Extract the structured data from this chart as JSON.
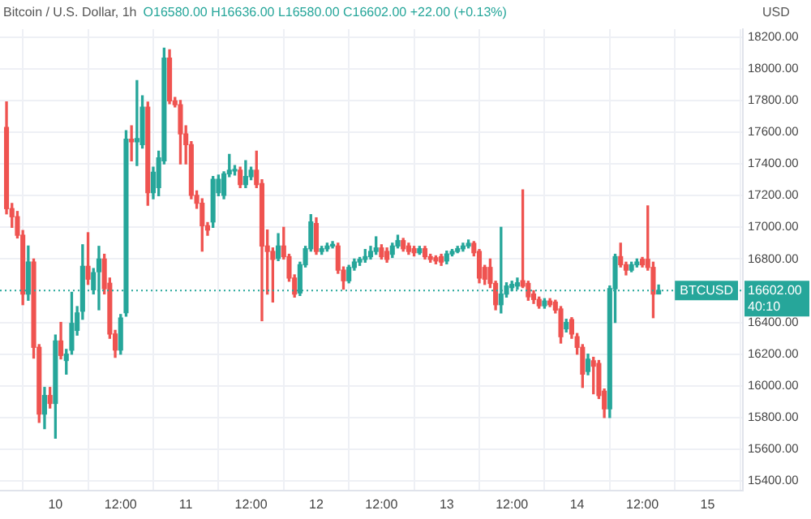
{
  "chart_data": {
    "type": "candlestick",
    "title": "Bitcoin / U.S. Dollar, 1h",
    "subtitle": "O16580.00 H16636.00 L16580.00 C16602.00 +22.00 (+0.13%)",
    "ylabel": "USD",
    "x": [
      "--12-09T15:00",
      "--12-09T16:00",
      "--12-09T17:00",
      "--12-09T18:00",
      "--12-09T19:00",
      "--12-09T20:00",
      "--12-09T21:00",
      "--12-09T22:00",
      "--12-09T23:00",
      "--12-10T00:00",
      "--12-10T01:00",
      "--12-10T02:00",
      "--12-10T03:00",
      "--12-10T04:00",
      "--12-10T05:00",
      "--12-10T06:00",
      "--12-10T07:00",
      "--12-10T08:00",
      "--12-10T09:00",
      "--12-10T10:00",
      "--12-10T11:00",
      "--12-10T12:00",
      "--12-10T13:00",
      "--12-10T14:00",
      "--12-10T15:00",
      "--12-10T16:00",
      "--12-10T17:00",
      "--12-10T18:00",
      "--12-10T19:00",
      "--12-10T20:00",
      "--12-10T21:00",
      "--12-10T22:00",
      "--12-10T23:00",
      "--12-11T00:00",
      "--12-11T01:00",
      "--12-11T02:00",
      "--12-11T03:00",
      "--12-11T04:00",
      "--12-11T05:00",
      "--12-11T06:00",
      "--12-11T07:00",
      "--12-11T08:00",
      "--12-11T09:00",
      "--12-11T10:00",
      "--12-11T11:00",
      "--12-11T12:00",
      "--12-11T13:00",
      "--12-11T14:00",
      "--12-11T15:00",
      "--12-11T16:00",
      "--12-11T17:00",
      "--12-11T18:00",
      "--12-11T19:00",
      "--12-11T20:00",
      "--12-11T21:00",
      "--12-11T22:00",
      "--12-11T23:00",
      "--12-12T00:00",
      "--12-12T01:00",
      "--12-12T02:00",
      "--12-12T03:00",
      "--12-12T04:00",
      "--12-12T05:00",
      "--12-12T06:00",
      "--12-12T07:00",
      "--12-12T08:00",
      "--12-12T09:00",
      "--12-12T10:00",
      "--12-12T11:00",
      "--12-12T12:00",
      "--12-12T13:00",
      "--12-12T14:00",
      "--12-12T15:00",
      "--12-12T16:00",
      "--12-12T17:00",
      "--12-12T18:00",
      "--12-12T19:00",
      "--12-12T20:00",
      "--12-12T21:00",
      "--12-12T22:00",
      "--12-12T23:00",
      "--12-13T00:00",
      "--12-13T01:00",
      "--12-13T02:00",
      "--12-13T03:00",
      "--12-13T04:00",
      "--12-13T05:00",
      "--12-13T06:00",
      "--12-13T07:00",
      "--12-13T08:00",
      "--12-13T09:00",
      "--12-13T10:00",
      "--12-13T11:00",
      "--12-13T12:00",
      "--12-13T13:00",
      "--12-13T14:00",
      "--12-13T15:00",
      "--12-13T16:00",
      "--12-13T17:00",
      "--12-13T18:00",
      "--12-13T19:00",
      "--12-13T20:00",
      "--12-13T21:00",
      "--12-13T22:00",
      "--12-13T23:00",
      "--12-14T00:00",
      "--12-14T01:00",
      "--12-14T02:00",
      "--12-14T03:00",
      "--12-14T04:00",
      "--12-14T05:00",
      "--12-14T06:00",
      "--12-14T07:00",
      "--12-14T08:00",
      "--12-14T09:00",
      "--12-14T10:00",
      "--12-14T11:00",
      "--12-14T12:00",
      "--12-14T13:00",
      "--12-14T14:00",
      "--12-14T15:00"
    ],
    "ohlc": [
      [
        17630,
        17791,
        17085,
        17118
      ],
      [
        17118,
        17150,
        17000,
        17067
      ],
      [
        17067,
        17100,
        16933,
        16950
      ],
      [
        16950,
        16980,
        16512,
        16579
      ],
      [
        16579,
        16882,
        16540,
        16781
      ],
      [
        16781,
        16800,
        16175,
        16243
      ],
      [
        16243,
        16260,
        15770,
        15822
      ],
      [
        15822,
        15990,
        15730,
        15939
      ],
      [
        15939,
        15990,
        15860,
        15889
      ],
      [
        15889,
        16320,
        15670,
        16283
      ],
      [
        16283,
        16400,
        16170,
        16192
      ],
      [
        16160,
        16230,
        16074,
        16200
      ],
      [
        16225,
        16590,
        16200,
        16394
      ],
      [
        16350,
        16500,
        16320,
        16460
      ],
      [
        16471,
        16890,
        16420,
        16754
      ],
      [
        16754,
        16966,
        16640,
        16673
      ],
      [
        16606,
        16740,
        16580,
        16714
      ],
      [
        16720,
        16880,
        16480,
        16800
      ],
      [
        16800,
        16830,
        16580,
        16613
      ],
      [
        16647,
        16680,
        16300,
        16327
      ],
      [
        16327,
        16350,
        16180,
        16226
      ],
      [
        16226,
        16450,
        16200,
        16428
      ],
      [
        16461,
        17610,
        16440,
        17556
      ],
      [
        17556,
        17640,
        17420,
        17540
      ],
      [
        17540,
        17926,
        17390,
        17560
      ],
      [
        17522,
        17830,
        17500,
        17758
      ],
      [
        17758,
        17790,
        17140,
        17219
      ],
      [
        17219,
        17380,
        17180,
        17347
      ],
      [
        17250,
        17480,
        17200,
        17438
      ],
      [
        17420,
        18130,
        17400,
        18067
      ],
      [
        18067,
        18120,
        17780,
        17798
      ],
      [
        17798,
        17820,
        17760,
        17774
      ],
      [
        17774,
        17800,
        17400,
        17589
      ],
      [
        17589,
        17640,
        17400,
        17522
      ],
      [
        17522,
        17540,
        17180,
        17202
      ],
      [
        17202,
        17230,
        17120,
        17152
      ],
      [
        17152,
        17180,
        16850,
        17010
      ],
      [
        17010,
        17030,
        16950,
        16983
      ],
      [
        17034,
        17320,
        17000,
        17303
      ],
      [
        17219,
        17330,
        17200,
        17303
      ],
      [
        17202,
        17350,
        17180,
        17337
      ],
      [
        17337,
        17460,
        17320,
        17360
      ],
      [
        17355,
        17390,
        17330,
        17365
      ],
      [
        17360,
        17380,
        17250,
        17270
      ],
      [
        17270,
        17420,
        17250,
        17320
      ],
      [
        17320,
        17380,
        17300,
        17360
      ],
      [
        17360,
        17480,
        17250,
        17270
      ],
      [
        17276,
        17300,
        16411,
        16882
      ],
      [
        16882,
        16983,
        16579,
        16848
      ],
      [
        16848,
        16870,
        16529,
        16798
      ],
      [
        16804,
        16960,
        16790,
        16882
      ],
      [
        16882,
        17000,
        16800,
        16815
      ],
      [
        16815,
        16830,
        16660,
        16680
      ],
      [
        16680,
        16700,
        16560,
        16579
      ],
      [
        16586,
        16780,
        16570,
        16764
      ],
      [
        16764,
        16880,
        16750,
        16865
      ],
      [
        16865,
        17080,
        16850,
        17034
      ],
      [
        17024,
        17060,
        16830,
        16848
      ],
      [
        16848,
        16880,
        16830,
        16865
      ],
      [
        16865,
        16900,
        16850,
        16882
      ],
      [
        16882,
        16910,
        16870,
        16890
      ],
      [
        16882,
        16900,
        16710,
        16730
      ],
      [
        16730,
        16750,
        16610,
        16663
      ],
      [
        16663,
        16760,
        16650,
        16747
      ],
      [
        16747,
        16800,
        16730,
        16781
      ],
      [
        16781,
        16810,
        16760,
        16798
      ],
      [
        16798,
        16860,
        16780,
        16815
      ],
      [
        16815,
        16880,
        16800,
        16848
      ],
      [
        16848,
        16940,
        16830,
        16870
      ],
      [
        16870,
        16890,
        16800,
        16815
      ],
      [
        16848,
        16870,
        16780,
        16798
      ],
      [
        16830,
        16900,
        16810,
        16882
      ],
      [
        16882,
        16950,
        16870,
        16916
      ],
      [
        16916,
        16930,
        16850,
        16865
      ],
      [
        16882,
        16900,
        16830,
        16848
      ],
      [
        16865,
        16880,
        16820,
        16840
      ],
      [
        16840,
        16880,
        16830,
        16865
      ],
      [
        16865,
        16880,
        16800,
        16815
      ],
      [
        16815,
        16830,
        16780,
        16798
      ],
      [
        16808,
        16820,
        16770,
        16788
      ],
      [
        16815,
        16830,
        16760,
        16781
      ],
      [
        16788,
        16850,
        16770,
        16832
      ],
      [
        16832,
        16860,
        16820,
        16848
      ],
      [
        16848,
        16880,
        16840,
        16865
      ],
      [
        16865,
        16900,
        16850,
        16882
      ],
      [
        16882,
        16920,
        16870,
        16899
      ],
      [
        16899,
        16910,
        16820,
        16840
      ],
      [
        16848,
        16860,
        16650,
        16680
      ],
      [
        16747,
        16760,
        16640,
        16673
      ],
      [
        16747,
        16800,
        16620,
        16646
      ],
      [
        16646,
        16660,
        16480,
        16512
      ],
      [
        16512,
        17000,
        16460,
        16579
      ],
      [
        16579,
        16650,
        16560,
        16630
      ],
      [
        16620,
        16660,
        16600,
        16640
      ],
      [
        16630,
        16680,
        16610,
        16650
      ],
      [
        16663,
        17236,
        16620,
        16629
      ],
      [
        16646,
        16660,
        16540,
        16562
      ],
      [
        16579,
        16600,
        16520,
        16545
      ],
      [
        16545,
        16560,
        16490,
        16505
      ],
      [
        16505,
        16550,
        16490,
        16535
      ],
      [
        16535,
        16550,
        16500,
        16512
      ],
      [
        16528,
        16540,
        16460,
        16478
      ],
      [
        16485,
        16500,
        16270,
        16310
      ],
      [
        16360,
        16420,
        16340,
        16400
      ],
      [
        16418,
        16430,
        16300,
        16327
      ],
      [
        16310,
        16330,
        16200,
        16243
      ],
      [
        16243,
        16260,
        15990,
        16074
      ],
      [
        16091,
        16200,
        16070,
        16168
      ],
      [
        16158,
        16180,
        15950,
        16124
      ],
      [
        16141,
        16160,
        15920,
        15939
      ],
      [
        15966,
        15980,
        15800,
        15855
      ],
      [
        15855,
        16630,
        15800,
        16613
      ],
      [
        16613,
        16830,
        16400,
        16815
      ],
      [
        16815,
        16900,
        16750,
        16764
      ],
      [
        16764,
        16780,
        16700,
        16730
      ],
      [
        16730,
        16780,
        16720,
        16764
      ],
      [
        16764,
        16800,
        16750,
        16781
      ],
      [
        16798,
        16810,
        16750,
        16764
      ],
      [
        16798,
        17135,
        16730,
        16747
      ],
      [
        16747,
        16780,
        16430,
        16579
      ],
      [
        16580,
        16636,
        16580,
        16602
      ]
    ],
    "colors": [
      "#ef5350",
      "#ef5350",
      "#ef5350",
      "#ef5350",
      "#26a69a",
      "#ef5350",
      "#ef5350",
      "#26a69a",
      "#ef5350",
      "#26a69a",
      "#ef5350",
      "#26a69a",
      "#26a69a",
      "#26a69a",
      "#26a69a",
      "#ef5350",
      "#26a69a",
      "#26a69a",
      "#ef5350",
      "#ef5350",
      "#ef5350",
      "#26a69a",
      "#26a69a",
      "#ef5350",
      "#26a69a",
      "#26a69a",
      "#ef5350",
      "#26a69a",
      "#26a69a",
      "#26a69a",
      "#ef5350",
      "#ef5350",
      "#ef5350",
      "#ef5350",
      "#ef5350",
      "#ef5350",
      "#ef5350",
      "#ef5350",
      "#26a69a",
      "#26a69a",
      "#26a69a",
      "#26a69a",
      "#26a69a",
      "#ef5350",
      "#26a69a",
      "#26a69a",
      "#ef5350",
      "#ef5350",
      "#ef5350",
      "#ef5350",
      "#26a69a",
      "#ef5350",
      "#ef5350",
      "#ef5350",
      "#26a69a",
      "#26a69a",
      "#26a69a",
      "#ef5350",
      "#26a69a",
      "#26a69a",
      "#26a69a",
      "#ef5350",
      "#ef5350",
      "#26a69a",
      "#26a69a",
      "#26a69a",
      "#26a69a",
      "#26a69a",
      "#26a69a",
      "#ef5350",
      "#ef5350",
      "#26a69a",
      "#26a69a",
      "#ef5350",
      "#ef5350",
      "#ef5350",
      "#26a69a",
      "#ef5350",
      "#ef5350",
      "#ef5350",
      "#ef5350",
      "#26a69a",
      "#26a69a",
      "#26a69a",
      "#26a69a",
      "#26a69a",
      "#ef5350",
      "#ef5350",
      "#ef5350",
      "#ef5350",
      "#ef5350",
      "#26a69a",
      "#26a69a",
      "#26a69a",
      "#26a69a",
      "#ef5350",
      "#ef5350",
      "#ef5350",
      "#ef5350",
      "#26a69a",
      "#ef5350",
      "#ef5350",
      "#ef5350",
      "#26a69a",
      "#ef5350",
      "#ef5350",
      "#ef5350",
      "#26a69a",
      "#ef5350",
      "#ef5350",
      "#ef5350",
      "#26a69a",
      "#26a69a",
      "#ef5350",
      "#ef5350",
      "#26a69a",
      "#26a69a",
      "#ef5350",
      "#ef5350",
      "#ef5350",
      "#26a69a"
    ],
    "xlim": [
      "--12-09T13:48",
      "--12-15T06:30"
    ],
    "xticks": [
      {
        "value": "--12-10",
        "label": "10"
      },
      {
        "value": "--12-10T12:00",
        "label": "12:00"
      },
      {
        "value": "--12-11",
        "label": "11"
      },
      {
        "value": "--12-11T12:00",
        "label": "12:00"
      },
      {
        "value": "--12-12",
        "label": "12"
      },
      {
        "value": "--12-12T12:00",
        "label": "12:00"
      },
      {
        "value": "--12-13",
        "label": "13"
      },
      {
        "value": "--12-13T12:00",
        "label": "12:00"
      },
      {
        "value": "--12-14",
        "label": "14"
      },
      {
        "value": "--12-14T12:00",
        "label": "12:00"
      },
      {
        "value": "--12-15",
        "label": "15"
      }
    ],
    "ylim": [
      15340,
      18250
    ],
    "yticks": [
      {
        "value": 15400,
        "label": "15400.00"
      },
      {
        "value": 15600,
        "label": "15600.00"
      },
      {
        "value": 15800,
        "label": "15800.00"
      },
      {
        "value": 16000,
        "label": "16000.00"
      },
      {
        "value": 16200,
        "label": "16200.00"
      },
      {
        "value": 16400,
        "label": "16400.00"
      },
      {
        "value": 16800,
        "label": "16800.00"
      },
      {
        "value": 17000,
        "label": "17000.00"
      },
      {
        "value": 17200,
        "label": "17200.00"
      },
      {
        "value": 17400,
        "label": "17400.00"
      },
      {
        "value": 17600,
        "label": "17600.00"
      },
      {
        "value": 17800,
        "label": "17800.00"
      },
      {
        "value": 18000,
        "label": "18000.00"
      },
      {
        "value": 18200,
        "label": "18200.00"
      }
    ],
    "ref_lines": [
      {
        "axis": "y",
        "value": 16602,
        "label": "BTCUSD",
        "color": "#26a69a",
        "line_style": "dotted"
      }
    ],
    "annotations": [
      "16602.00",
      "40:10"
    ],
    "grid": true,
    "legend": false
  }
}
